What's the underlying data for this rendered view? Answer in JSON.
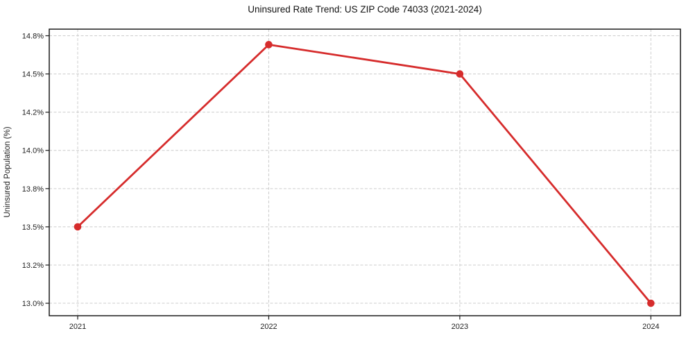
{
  "chart_data": {
    "type": "line",
    "title": "Uninsured Rate Trend: US ZIP Code 74033 (2021-2024)",
    "xlabel": "",
    "ylabel": "Uninsured Population (%)",
    "categories": [
      "2021",
      "2022",
      "2023",
      "2024"
    ],
    "values": [
      13.5,
      14.73,
      14.5,
      13.0
    ],
    "y_tick_labels": [
      "14.8%",
      "14.5%",
      "14.2%",
      "14.0%",
      "13.8%",
      "13.5%",
      "13.2%",
      "13.0%"
    ],
    "y_tick_values": [
      14.8,
      14.5,
      14.2,
      14.0,
      13.8,
      13.5,
      13.2,
      13.0
    ],
    "grid": true,
    "legend_position": "none",
    "marker": "circle",
    "line_color": "#d62c2c",
    "gridline_color": "#cccccc",
    "axis_color": "#1a1a1a",
    "background_color": "#ffffff"
  }
}
